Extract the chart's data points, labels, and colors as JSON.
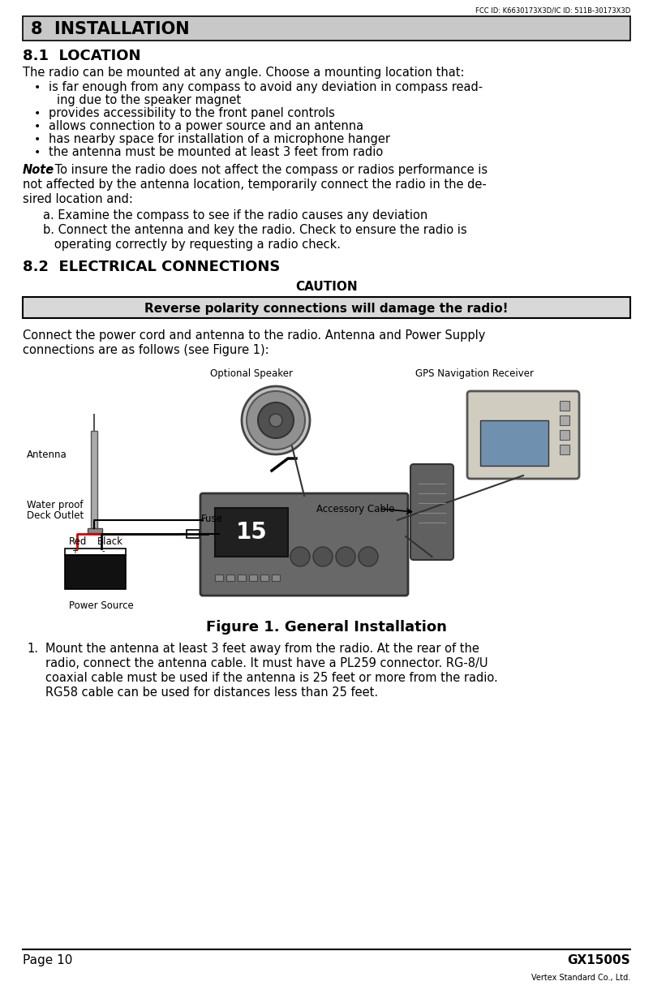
{
  "bg_color": "#ffffff",
  "top_label": "FCC ID: K6630173X3D/IC ID: 511B-30173X3D",
  "section_header": "8  INSTALLATION",
  "section_header_bg": "#c8c8c8",
  "section_81_title": "8.1  LOCATION",
  "para1": "The radio can be mounted at any angle. Choose a mounting location that:",
  "bullets": [
    "is far enough from any compass to avoid any deviation in compass read-\ning due to the speaker magnet",
    "provides accessibility to the front panel controls",
    "allows connection to a power source and an antenna",
    "has nearby space for installation of a microphone hanger",
    "the antenna must be mounted at least 3 feet from radio"
  ],
  "note_bold": "Note",
  "note_rest": ": To insure the radio does not affect the compass or radios performance is",
  "note_line2": "not affected by the antenna location, temporarily connect the radio in the de-",
  "note_line3": "sired location and:",
  "note_items": [
    "a. Examine the compass to see if the radio causes any deviation",
    "b. Connect the antenna and key the radio. Check to ensure the radio is",
    "   operating correctly by requesting a radio check."
  ],
  "section_82_title": "8.2  ELECTRICAL CONNECTIONS",
  "caution_label": "CAUTION",
  "caution_box_text": "Reverse polarity connections will damage the radio!",
  "caution_box_bg": "#d8d8d8",
  "para2_line1": "Connect the power cord and antenna to the radio. Antenna and Power Supply",
  "para2_line2": "connections are as follows (see Figure 1):",
  "diagram_labels": {
    "optional_speaker": "Optional Speaker",
    "gps_receiver": "GPS Navigation Receiver",
    "antenna": "Antenna",
    "water_proof_1": "Water proof",
    "water_proof_2": "Deck Outlet",
    "fuse": "Fuse",
    "accessory_cable": "Accessory Cable",
    "red": "Red",
    "black": "Black",
    "power_source": "Power Source"
  },
  "figure_caption": "Figure 1. General Installation",
  "list_item_1_num": "1.",
  "list_item_1_lines": [
    "Mount the antenna at least 3 feet away from the radio. At the rear of the",
    "radio, connect the antenna cable. It must have a PL259 connector. RG-8/U",
    "coaxial cable must be used if the antenna is 25 feet or more from the radio.",
    "RG58 cable can be used for distances less than 25 feet."
  ],
  "footer_left": "Page 10",
  "footer_right": "GX1500S",
  "footer_small": "Vertex Standard Co., Ltd."
}
